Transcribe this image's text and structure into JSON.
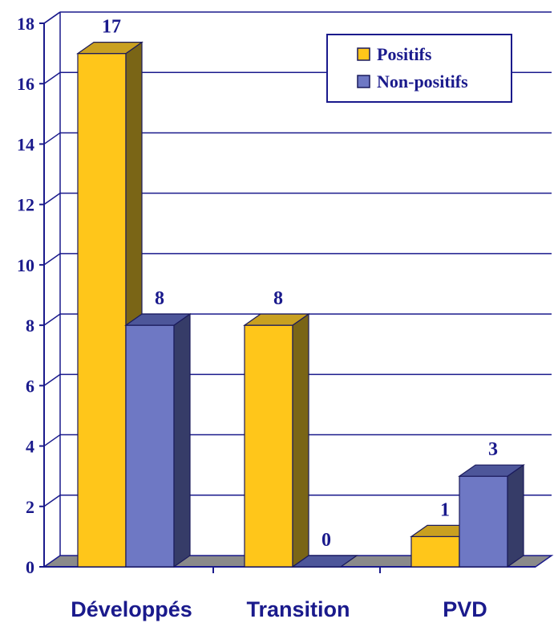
{
  "chart_data": {
    "type": "bar",
    "categories": [
      "Développés",
      "Transition",
      "PVD"
    ],
    "series": [
      {
        "name": "Positifs",
        "values": [
          17,
          8,
          1
        ],
        "color": "#ffc61a",
        "side_color": "#7a6516",
        "top_color": "#c9a020"
      },
      {
        "name": "Non-positifs",
        "values": [
          8,
          0,
          3
        ],
        "color": "#6e78c4",
        "side_color": "#363c68",
        "top_color": "#4d569a"
      }
    ],
    "ylim": [
      0,
      18
    ],
    "yticks": [
      0,
      2,
      4,
      6,
      8,
      10,
      12,
      14,
      16,
      18
    ],
    "data_labels": true,
    "legend_position": "top-right",
    "grid": true,
    "style": "3d-bar",
    "text_color": "#1a1a8c",
    "floor_color": "#8a8a8a"
  }
}
